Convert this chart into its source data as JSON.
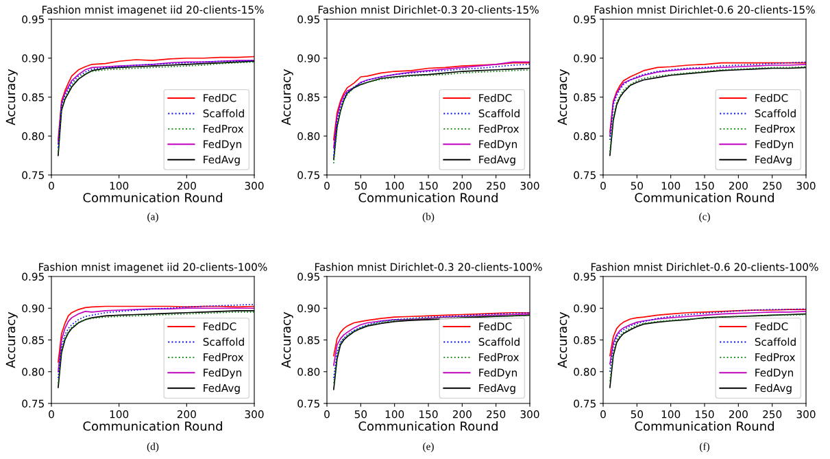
{
  "chart_data": [
    {
      "type": "line",
      "title": "Fashion mnist imagenet iid 20-clients-15%",
      "xlabel": "Communication Round",
      "ylabel": "Accuracy",
      "xlim": [
        0,
        300
      ],
      "ylim": [
        0.75,
        0.95
      ],
      "xticks": [
        0,
        100,
        200,
        300
      ],
      "yticks": [
        {
          "value": 0.75,
          "label": "0.75"
        },
        {
          "value": 0.8,
          "label": "0.80"
        },
        {
          "value": 0.85,
          "label": "0.85"
        },
        {
          "value": 0.9,
          "label": "0.90"
        },
        {
          "value": 0.95,
          "label": "0.95"
        }
      ],
      "legend": "bottom right",
      "grid": false,
      "annotations": [
        "(a)"
      ],
      "x": [
        10,
        15,
        20,
        25,
        30,
        40,
        50,
        60,
        80,
        100,
        125,
        150,
        175,
        200,
        225,
        250,
        275,
        300
      ],
      "series": [
        {
          "name": "FedDC",
          "color": "#ff0000",
          "line_style": "solid",
          "values": [
            0.795,
            0.845,
            0.858,
            0.868,
            0.877,
            0.885,
            0.889,
            0.892,
            0.893,
            0.896,
            0.898,
            0.897,
            0.899,
            0.9,
            0.9,
            0.901,
            0.901,
            0.902
          ]
        },
        {
          "name": "Scaffold",
          "color": "#0000ff",
          "line_style": "dotted",
          "values": [
            0.785,
            0.84,
            0.852,
            0.86,
            0.868,
            0.877,
            0.882,
            0.886,
            0.888,
            0.889,
            0.891,
            0.892,
            0.893,
            0.894,
            0.895,
            0.896,
            0.896,
            0.897
          ]
        },
        {
          "name": "FedProx",
          "color": "#008000",
          "line_style": "dotted",
          "values": [
            0.78,
            0.836,
            0.849,
            0.857,
            0.865,
            0.874,
            0.88,
            0.883,
            0.885,
            0.886,
            0.887,
            0.888,
            0.889,
            0.89,
            0.891,
            0.893,
            0.894,
            0.895
          ]
        },
        {
          "name": "FedDyn",
          "color": "#bf00bf",
          "line_style": "solid",
          "values": [
            0.79,
            0.842,
            0.855,
            0.863,
            0.871,
            0.879,
            0.885,
            0.888,
            0.889,
            0.89,
            0.891,
            0.892,
            0.894,
            0.895,
            0.895,
            0.896,
            0.897,
            0.897
          ]
        },
        {
          "name": "FedAvg",
          "color": "#000000",
          "line_style": "solid",
          "values": [
            0.775,
            0.833,
            0.847,
            0.855,
            0.863,
            0.873,
            0.879,
            0.884,
            0.887,
            0.888,
            0.889,
            0.89,
            0.891,
            0.892,
            0.893,
            0.894,
            0.895,
            0.896
          ]
        }
      ]
    },
    {
      "type": "line",
      "title": "Fashion mnist Dirichlet-0.3 20-clients-15%",
      "xlabel": "Communication Round",
      "ylabel": "Accuracy",
      "xlim": [
        0,
        300
      ],
      "ylim": [
        0.75,
        0.95
      ],
      "xticks": [
        0,
        50,
        100,
        150,
        200,
        250,
        300
      ],
      "yticks": [
        {
          "value": 0.75,
          "label": "0.75"
        },
        {
          "value": 0.8,
          "label": "0.80"
        },
        {
          "value": 0.85,
          "label": "0.85"
        },
        {
          "value": 0.9,
          "label": "0.90"
        },
        {
          "value": 0.95,
          "label": "0.95"
        }
      ],
      "legend": "bottom right",
      "grid": false,
      "annotations": [
        "(b)"
      ],
      "x": [
        10,
        15,
        20,
        25,
        30,
        40,
        50,
        60,
        80,
        100,
        125,
        150,
        175,
        200,
        225,
        250,
        275,
        300
      ],
      "series": [
        {
          "name": "FedDC",
          "color": "#ff0000",
          "line_style": "solid",
          "values": [
            0.795,
            0.83,
            0.845,
            0.855,
            0.862,
            0.868,
            0.876,
            0.877,
            0.881,
            0.883,
            0.884,
            0.887,
            0.888,
            0.89,
            0.891,
            0.892,
            0.894,
            0.894
          ]
        },
        {
          "name": "Scaffold",
          "color": "#0000ff",
          "line_style": "dotted",
          "values": [
            0.775,
            0.82,
            0.838,
            0.848,
            0.856,
            0.863,
            0.868,
            0.872,
            0.876,
            0.879,
            0.881,
            0.883,
            0.884,
            0.886,
            0.887,
            0.889,
            0.891,
            0.892
          ]
        },
        {
          "name": "FedProx",
          "color": "#008000",
          "line_style": "dotted",
          "values": [
            0.765,
            0.81,
            0.832,
            0.845,
            0.853,
            0.862,
            0.866,
            0.869,
            0.873,
            0.875,
            0.877,
            0.878,
            0.879,
            0.881,
            0.882,
            0.883,
            0.884,
            0.885
          ]
        },
        {
          "name": "FedDyn",
          "color": "#bf00bf",
          "line_style": "solid",
          "values": [
            0.785,
            0.825,
            0.842,
            0.852,
            0.858,
            0.862,
            0.869,
            0.872,
            0.876,
            0.879,
            0.882,
            0.884,
            0.886,
            0.888,
            0.89,
            0.892,
            0.895,
            0.895
          ]
        },
        {
          "name": "FedAvg",
          "color": "#000000",
          "line_style": "solid",
          "values": [
            0.77,
            0.812,
            0.832,
            0.846,
            0.855,
            0.862,
            0.866,
            0.869,
            0.874,
            0.876,
            0.878,
            0.879,
            0.881,
            0.883,
            0.884,
            0.885,
            0.886,
            0.887
          ]
        }
      ]
    },
    {
      "type": "line",
      "title": "Fashion mnist Dirichlet-0.6 20-clients-15%",
      "xlabel": "Communication Round",
      "ylabel": "Accuracy",
      "xlim": [
        0,
        300
      ],
      "ylim": [
        0.75,
        0.95
      ],
      "xticks": [
        0,
        50,
        100,
        150,
        200,
        250,
        300
      ],
      "yticks": [
        {
          "value": 0.75,
          "label": "0.75"
        },
        {
          "value": 0.8,
          "label": "0.80"
        },
        {
          "value": 0.85,
          "label": "0.85"
        },
        {
          "value": 0.9,
          "label": "0.90"
        },
        {
          "value": 0.95,
          "label": "0.95"
        }
      ],
      "legend": "bottom right",
      "grid": false,
      "annotations": [
        "(c)"
      ],
      "x": [
        10,
        15,
        20,
        25,
        30,
        40,
        50,
        60,
        80,
        100,
        125,
        150,
        175,
        200,
        225,
        250,
        275,
        300
      ],
      "series": [
        {
          "name": "FedDC",
          "color": "#ff0000",
          "line_style": "solid",
          "values": [
            0.805,
            0.845,
            0.857,
            0.865,
            0.871,
            0.876,
            0.88,
            0.884,
            0.888,
            0.889,
            0.891,
            0.892,
            0.894,
            0.894,
            0.894,
            0.894,
            0.894,
            0.894
          ]
        },
        {
          "name": "Scaffold",
          "color": "#0000ff",
          "line_style": "dotted",
          "values": [
            0.795,
            0.84,
            0.852,
            0.86,
            0.866,
            0.872,
            0.876,
            0.879,
            0.883,
            0.885,
            0.887,
            0.888,
            0.89,
            0.891,
            0.892,
            0.893,
            0.894,
            0.895
          ]
        },
        {
          "name": "FedProx",
          "color": "#008000",
          "line_style": "dotted",
          "values": [
            0.78,
            0.825,
            0.843,
            0.852,
            0.859,
            0.866,
            0.871,
            0.874,
            0.877,
            0.879,
            0.881,
            0.883,
            0.885,
            0.886,
            0.887,
            0.888,
            0.888,
            0.889
          ]
        },
        {
          "name": "FedDyn",
          "color": "#bf00bf",
          "line_style": "solid",
          "values": [
            0.8,
            0.843,
            0.855,
            0.862,
            0.868,
            0.872,
            0.875,
            0.878,
            0.882,
            0.884,
            0.886,
            0.887,
            0.888,
            0.889,
            0.89,
            0.891,
            0.891,
            0.892
          ]
        },
        {
          "name": "FedAvg",
          "color": "#000000",
          "line_style": "solid",
          "values": [
            0.775,
            0.82,
            0.84,
            0.85,
            0.856,
            0.865,
            0.869,
            0.872,
            0.875,
            0.878,
            0.88,
            0.882,
            0.884,
            0.885,
            0.886,
            0.887,
            0.887,
            0.888
          ]
        }
      ]
    },
    {
      "type": "line",
      "title": "Fashion mnist imagenet iid 20-clients-100%",
      "xlabel": "Communication Round",
      "ylabel": "Accuracy",
      "xlim": [
        0,
        300
      ],
      "ylim": [
        0.75,
        0.95
      ],
      "xticks": [
        0,
        100,
        200,
        300
      ],
      "yticks": [
        {
          "value": 0.75,
          "label": "0.75"
        },
        {
          "value": 0.8,
          "label": "0.80"
        },
        {
          "value": 0.85,
          "label": "0.85"
        },
        {
          "value": 0.9,
          "label": "0.90"
        },
        {
          "value": 0.95,
          "label": "0.95"
        }
      ],
      "legend": "bottom right",
      "grid": false,
      "annotations": [
        "(d)"
      ],
      "x": [
        10,
        15,
        20,
        25,
        30,
        40,
        50,
        60,
        80,
        100,
        125,
        150,
        175,
        200,
        225,
        250,
        275,
        300
      ],
      "series": [
        {
          "name": "FedDC",
          "color": "#ff0000",
          "line_style": "solid",
          "values": [
            0.815,
            0.86,
            0.876,
            0.888,
            0.893,
            0.898,
            0.901,
            0.902,
            0.903,
            0.903,
            0.903,
            0.903,
            0.903,
            0.902,
            0.903,
            0.903,
            0.902,
            0.903
          ]
        },
        {
          "name": "Scaffold",
          "color": "#0000ff",
          "line_style": "dotted",
          "values": [
            0.79,
            0.84,
            0.858,
            0.868,
            0.874,
            0.882,
            0.887,
            0.889,
            0.893,
            0.895,
            0.897,
            0.899,
            0.9,
            0.902,
            0.903,
            0.904,
            0.905,
            0.906
          ]
        },
        {
          "name": "FedProx",
          "color": "#008000",
          "line_style": "dotted",
          "values": [
            0.782,
            0.836,
            0.853,
            0.863,
            0.87,
            0.878,
            0.882,
            0.884,
            0.886,
            0.887,
            0.888,
            0.889,
            0.89,
            0.891,
            0.892,
            0.893,
            0.894,
            0.894
          ]
        },
        {
          "name": "FedDyn",
          "color": "#bf00bf",
          "line_style": "solid",
          "values": [
            0.8,
            0.85,
            0.868,
            0.879,
            0.885,
            0.891,
            0.895,
            0.894,
            0.896,
            0.897,
            0.898,
            0.899,
            0.899,
            0.9,
            0.9,
            0.9,
            0.9,
            0.9
          ]
        },
        {
          "name": "FedAvg",
          "color": "#000000",
          "line_style": "solid",
          "values": [
            0.775,
            0.83,
            0.85,
            0.861,
            0.868,
            0.877,
            0.882,
            0.885,
            0.888,
            0.889,
            0.89,
            0.891,
            0.892,
            0.893,
            0.894,
            0.895,
            0.896,
            0.896
          ]
        }
      ]
    },
    {
      "type": "line",
      "title": "Fashion mnist Dirichlet-0.3 20-clients-100%",
      "xlabel": "Communication Round",
      "ylabel": "Accuracy",
      "xlim": [
        0,
        300
      ],
      "ylim": [
        0.75,
        0.95
      ],
      "xticks": [
        0,
        50,
        100,
        150,
        200,
        250,
        300
      ],
      "yticks": [
        {
          "value": 0.75,
          "label": "0.75"
        },
        {
          "value": 0.8,
          "label": "0.80"
        },
        {
          "value": 0.85,
          "label": "0.85"
        },
        {
          "value": 0.9,
          "label": "0.90"
        },
        {
          "value": 0.95,
          "label": "0.95"
        }
      ],
      "legend": "bottom right",
      "grid": false,
      "annotations": [
        "(e)"
      ],
      "x": [
        10,
        15,
        20,
        25,
        30,
        40,
        50,
        60,
        80,
        100,
        125,
        150,
        175,
        200,
        225,
        250,
        275,
        300
      ],
      "series": [
        {
          "name": "FedDC",
          "color": "#ff0000",
          "line_style": "solid",
          "values": [
            0.825,
            0.852,
            0.862,
            0.868,
            0.872,
            0.877,
            0.879,
            0.881,
            0.884,
            0.886,
            0.887,
            0.888,
            0.889,
            0.89,
            0.891,
            0.892,
            0.893,
            0.893
          ]
        },
        {
          "name": "Scaffold",
          "color": "#0000ff",
          "line_style": "dotted",
          "values": [
            0.79,
            0.83,
            0.846,
            0.853,
            0.858,
            0.865,
            0.87,
            0.874,
            0.879,
            0.882,
            0.884,
            0.886,
            0.887,
            0.888,
            0.89,
            0.891,
            0.892,
            0.893
          ]
        },
        {
          "name": "FedProx",
          "color": "#008000",
          "line_style": "dotted",
          "values": [
            0.782,
            0.825,
            0.845,
            0.852,
            0.856,
            0.864,
            0.869,
            0.873,
            0.878,
            0.881,
            0.883,
            0.884,
            0.885,
            0.886,
            0.887,
            0.888,
            0.888,
            0.889
          ]
        },
        {
          "name": "FedDyn",
          "color": "#bf00bf",
          "line_style": "solid",
          "values": [
            0.81,
            0.842,
            0.852,
            0.858,
            0.862,
            0.869,
            0.874,
            0.877,
            0.88,
            0.882,
            0.882,
            0.884,
            0.886,
            0.887,
            0.888,
            0.889,
            0.89,
            0.891
          ]
        },
        {
          "name": "FedAvg",
          "color": "#000000",
          "line_style": "solid",
          "values": [
            0.772,
            0.82,
            0.842,
            0.85,
            0.855,
            0.863,
            0.868,
            0.872,
            0.876,
            0.879,
            0.881,
            0.882,
            0.883,
            0.885,
            0.886,
            0.887,
            0.888,
            0.889
          ]
        }
      ]
    },
    {
      "type": "line",
      "title": "Fashion mnist Dirichlet-0.6 20-clients-100%",
      "xlabel": "Communication Round",
      "ylabel": "Accuracy",
      "xlim": [
        0,
        300
      ],
      "ylim": [
        0.75,
        0.95
      ],
      "xticks": [
        0,
        50,
        100,
        150,
        200,
        250,
        300
      ],
      "yticks": [
        {
          "value": 0.75,
          "label": "0.75"
        },
        {
          "value": 0.8,
          "label": "0.80"
        },
        {
          "value": 0.85,
          "label": "0.85"
        },
        {
          "value": 0.9,
          "label": "0.90"
        },
        {
          "value": 0.95,
          "label": "0.95"
        }
      ],
      "legend": "bottom right",
      "grid": false,
      "annotations": [
        "(f)"
      ],
      "x": [
        10,
        15,
        20,
        25,
        30,
        40,
        50,
        60,
        80,
        100,
        125,
        150,
        175,
        200,
        225,
        250,
        275,
        300
      ],
      "series": [
        {
          "name": "FedDC",
          "color": "#ff0000",
          "line_style": "solid",
          "values": [
            0.825,
            0.855,
            0.868,
            0.874,
            0.878,
            0.883,
            0.885,
            0.886,
            0.889,
            0.891,
            0.893,
            0.894,
            0.895,
            0.896,
            0.897,
            0.897,
            0.898,
            0.898
          ]
        },
        {
          "name": "Scaffold",
          "color": "#0000ff",
          "line_style": "dotted",
          "values": [
            0.8,
            0.84,
            0.855,
            0.862,
            0.866,
            0.872,
            0.876,
            0.879,
            0.884,
            0.887,
            0.89,
            0.892,
            0.894,
            0.896,
            0.897,
            0.898,
            0.898,
            0.899
          ]
        },
        {
          "name": "FedProx",
          "color": "#008000",
          "line_style": "dotted",
          "values": [
            0.785,
            0.83,
            0.85,
            0.857,
            0.862,
            0.868,
            0.873,
            0.876,
            0.879,
            0.881,
            0.883,
            0.884,
            0.886,
            0.887,
            0.888,
            0.889,
            0.889,
            0.89
          ]
        },
        {
          "name": "FedDyn",
          "color": "#bf00bf",
          "line_style": "solid",
          "values": [
            0.812,
            0.845,
            0.858,
            0.865,
            0.869,
            0.874,
            0.878,
            0.88,
            0.883,
            0.885,
            0.887,
            0.889,
            0.891,
            0.892,
            0.893,
            0.894,
            0.894,
            0.895
          ]
        },
        {
          "name": "FedAvg",
          "color": "#000000",
          "line_style": "solid",
          "values": [
            0.775,
            0.825,
            0.846,
            0.854,
            0.86,
            0.866,
            0.871,
            0.875,
            0.878,
            0.88,
            0.882,
            0.885,
            0.886,
            0.887,
            0.888,
            0.889,
            0.89,
            0.891
          ]
        }
      ]
    }
  ]
}
